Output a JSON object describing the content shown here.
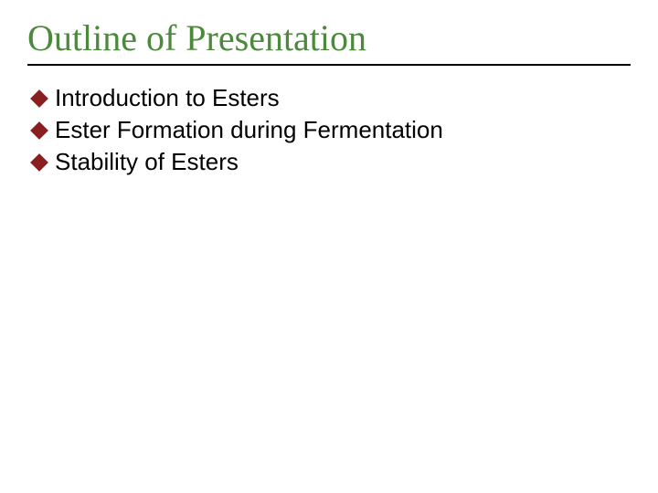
{
  "slide": {
    "title": "Outline of Presentation",
    "title_color": "#4a8a3a",
    "title_fontsize": 40,
    "rule_color": "#000000",
    "bullet_marker_color": "#8a1f1f",
    "bullet_fontsize": 26,
    "bullets": [
      {
        "text": "Introduction to Esters"
      },
      {
        "text": "Ester Formation during Fermentation"
      },
      {
        "text": "Stability of Esters"
      }
    ],
    "background_color": "#ffffff"
  }
}
